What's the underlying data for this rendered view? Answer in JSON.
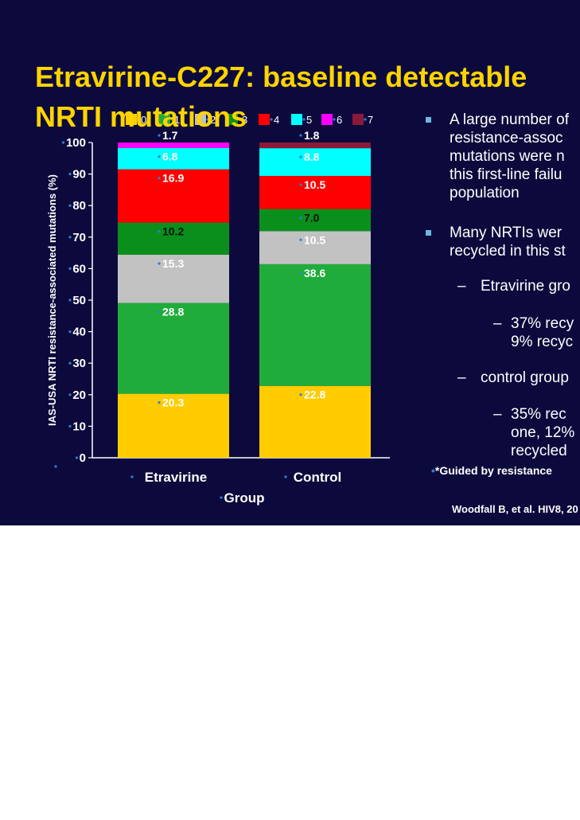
{
  "slide": {
    "title_line1": "Etravirine-C227: baseline detectable",
    "title_line2": "NRTI mutations",
    "bullets": [
      {
        "lines": [
          "A large number of",
          "resistance-assoc",
          "mutations were n",
          "this first-line failu",
          "population"
        ]
      },
      {
        "lines": [
          "Many NRTIs wer",
          "recycled in this st"
        ]
      }
    ],
    "sub": [
      {
        "text": "Etravirine gro"
      },
      {
        "lines": [
          "37% recy",
          "9% recyc"
        ]
      },
      {
        "text": "control group"
      },
      {
        "lines": [
          "35% rec",
          "one, 12%",
          "recycled"
        ]
      }
    ],
    "dash_glyph": "–",
    "footnote": "*Guided by resistance",
    "citation": "Woodfall B, et al. HIV8, 20"
  },
  "chart_data": {
    "type": "bar",
    "stacked": true,
    "categories": [
      "Etravirine",
      "Control"
    ],
    "series": [
      {
        "name": "0",
        "color": "#ffcc00",
        "values": [
          20.3,
          22.8
        ]
      },
      {
        "name": "1",
        "color": "#1fac3a",
        "values": [
          28.8,
          38.6
        ]
      },
      {
        "name": "2",
        "color": "#c2c2c2",
        "values": [
          15.3,
          10.5
        ]
      },
      {
        "name": "3",
        "color": "#0b8f1c",
        "values": [
          10.2,
          7.0
        ]
      },
      {
        "name": "4",
        "color": "#ff0000",
        "values": [
          16.9,
          10.5
        ]
      },
      {
        "name": "5",
        "color": "#00ffff",
        "values": [
          6.8,
          8.8
        ]
      },
      {
        "name": "6",
        "color": "#ff00ff",
        "values": [
          1.7,
          0
        ]
      },
      {
        "name": "7",
        "color": "#8b1a3a",
        "values": [
          0,
          1.8
        ]
      }
    ],
    "labels": [
      [
        "20.3",
        "28.8",
        "15.3",
        "10.2",
        "16.9",
        "6.8",
        "1.7",
        ""
      ],
      [
        "22.8",
        "38.6",
        "10.5",
        "7.0",
        "10.5",
        "8.8",
        "",
        "1.8"
      ]
    ],
    "ylabel": "IAS-USA NRTI resistance-associated mutations (%)",
    "xlabel": "Group",
    "ylim": [
      0,
      100
    ],
    "yticks": [
      "0",
      "10",
      "20",
      "30",
      "40",
      "50",
      "60",
      "70",
      "80",
      "90",
      "100"
    ]
  }
}
